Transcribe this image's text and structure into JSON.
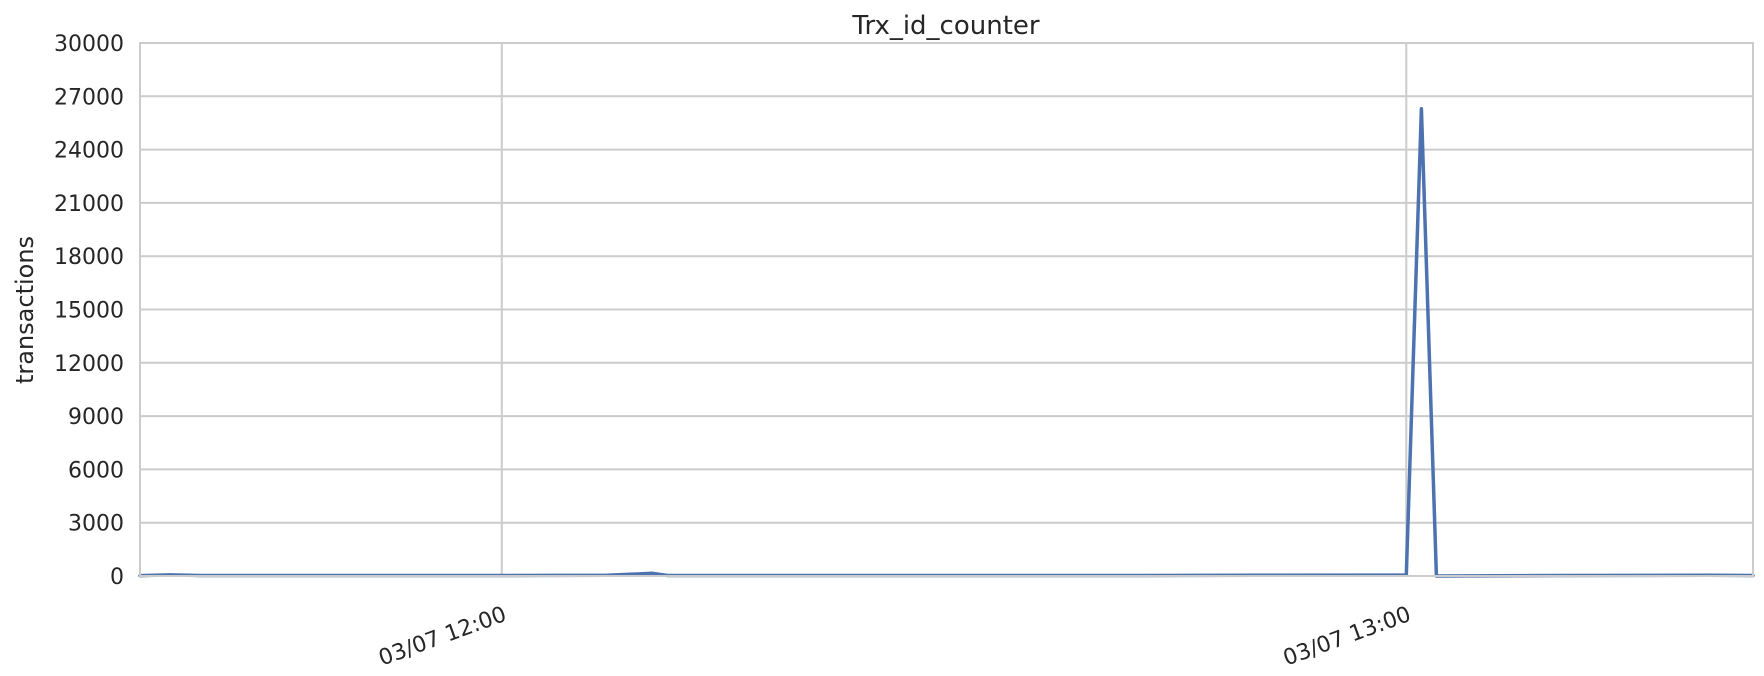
{
  "chart_data": {
    "type": "line",
    "title": "Trx_id_counter",
    "xlabel": "",
    "ylabel": "transactions",
    "x_range": [
      "03/07 11:36",
      "03/07 13:23"
    ],
    "x_ticks": [
      {
        "time": "03/07 12:00",
        "label": "03/07 12:00"
      },
      {
        "time": "03/07 13:00",
        "label": "03/07 13:00"
      }
    ],
    "x_tick_rotation_deg": 20,
    "ylim": [
      0,
      30000
    ],
    "y_ticks": [
      0,
      3000,
      6000,
      9000,
      12000,
      15000,
      18000,
      21000,
      24000,
      27000,
      30000
    ],
    "grid": true,
    "legend": "none",
    "series": [
      {
        "color": "#4c72b0",
        "points": [
          {
            "t": "03/07 11:36",
            "v": 20
          },
          {
            "t": "03/07 11:38",
            "v": 60
          },
          {
            "t": "03/07 11:40",
            "v": 30
          },
          {
            "t": "03/07 11:50",
            "v": 30
          },
          {
            "t": "03/07 12:00",
            "v": 30
          },
          {
            "t": "03/07 12:07",
            "v": 40
          },
          {
            "t": "03/07 12:10",
            "v": 150
          },
          {
            "t": "03/07 12:11",
            "v": 30
          },
          {
            "t": "03/07 12:20",
            "v": 30
          },
          {
            "t": "03/07 12:30",
            "v": 30
          },
          {
            "t": "03/07 12:40",
            "v": 30
          },
          {
            "t": "03/07 12:50",
            "v": 40
          },
          {
            "t": "03/07 13:00",
            "v": 50
          },
          {
            "t": "03/07 13:01",
            "v": 26300
          },
          {
            "t": "03/07 13:02",
            "v": 0
          },
          {
            "t": "03/07 13:10",
            "v": 30
          },
          {
            "t": "03/07 13:20",
            "v": 40
          },
          {
            "t": "03/07 13:23",
            "v": 30
          }
        ]
      }
    ]
  }
}
